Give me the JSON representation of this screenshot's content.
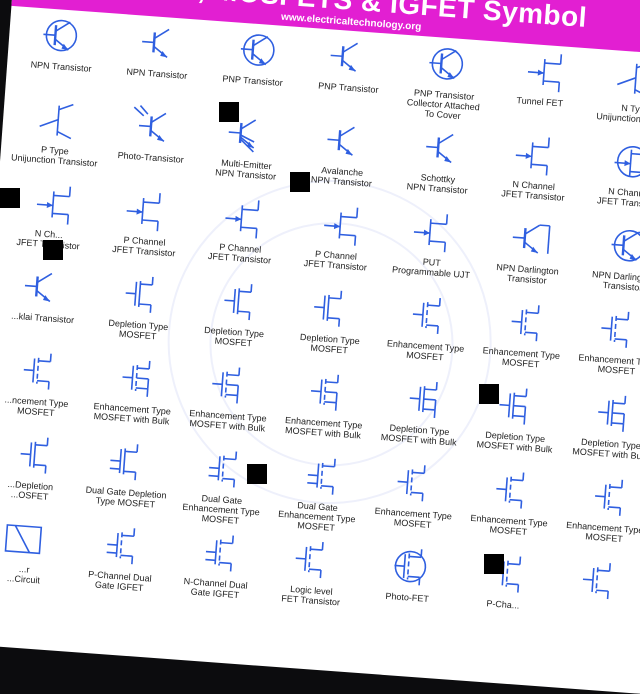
{
  "banner": {
    "title": "...tors, MOSFETS & IGFET Symbol",
    "url": "www.electricaltechnology.org"
  },
  "colors": {
    "banner": "#e21fd2",
    "symbol": "#2f5fe0",
    "label": "#222222",
    "background": "#0c0c0e"
  },
  "rows": [
    {
      "cells": [
        {
          "label": "NPN Transistor",
          "icon": "npn-transistor-circle-icon"
        },
        {
          "label": "NPN Transistor",
          "icon": "npn-transistor-icon"
        },
        {
          "label": "PNP Transistor",
          "icon": "pnp-transistor-circle-icon"
        },
        {
          "label": "PNP Transistor",
          "icon": "pnp-transistor-icon"
        },
        {
          "label": "PNP Transistor\nCollector Attached\nTo Cover",
          "icon": "pnp-collector-cover-icon"
        },
        {
          "label": "Tunnel FET",
          "icon": "tunnel-fet-icon"
        },
        {
          "label": "N Type\nUnijunction Trans...",
          "icon": "n-type-ujt-icon"
        }
      ]
    },
    {
      "cells": [
        {
          "label": "P Type\nUnijunction Transistor",
          "icon": "p-type-ujt-icon"
        },
        {
          "label": "Photo-Transistor",
          "icon": "photo-transistor-icon"
        },
        {
          "label": "Multi-Emitter\nNPN Transistor",
          "icon": "multi-emitter-npn-icon"
        },
        {
          "label": "Avalanche\nNPN Transistor",
          "icon": "avalanche-npn-icon"
        },
        {
          "label": "Schottky\nNPN Transistor",
          "icon": "schottky-npn-icon"
        },
        {
          "label": "N Channel\nJFET Transistor",
          "icon": "n-channel-jfet-icon"
        },
        {
          "label": "N Channel\nJFET Transistor",
          "icon": "n-channel-jfet-circle-icon"
        }
      ]
    },
    {
      "cells": [
        {
          "label": "N Ch...\nJFET Transistor",
          "icon": "n-channel-jfet-icon"
        },
        {
          "label": "P Channel\nJFET Transistor",
          "icon": "p-channel-jfet-icon"
        },
        {
          "label": "P Channel\nJFET Transistor",
          "icon": "p-channel-jfet-icon"
        },
        {
          "label": "P Channel\nJFET Transistor",
          "icon": "p-channel-jfet-arrow-icon"
        },
        {
          "label": "PUT\nProgrammable UJT",
          "icon": "put-icon"
        },
        {
          "label": "NPN Darlington\nTransistor",
          "icon": "npn-darlington-icon"
        },
        {
          "label": "NPN Darlington\nTransistor",
          "icon": "npn-darlington-full-icon"
        }
      ]
    },
    {
      "cells": [
        {
          "label": "...klai Transistor",
          "icon": "sziklai-transistor-icon"
        },
        {
          "label": "Depletion Type\nMOSFET",
          "icon": "depletion-mosfet-icon"
        },
        {
          "label": "Depletion Type\nMOSFET",
          "icon": "depletion-mosfet-icon"
        },
        {
          "label": "Depletion Type\nMOSFET",
          "icon": "depletion-mosfet-icon"
        },
        {
          "label": "Enhancement Type\nMOSFET",
          "icon": "enhancement-mosfet-icon"
        },
        {
          "label": "Enhancement Type\nMOSFET",
          "icon": "enhancement-mosfet-icon"
        },
        {
          "label": "Enhancement Type\nMOSFET",
          "icon": "enhancement-mosfet-icon"
        }
      ]
    },
    {
      "cells": [
        {
          "label": "...ncement Type\nMOSFET",
          "icon": "enhancement-mosfet-icon"
        },
        {
          "label": "Enhancement Type\nMOSFET with Bulk",
          "icon": "enhancement-mosfet-bulk-icon"
        },
        {
          "label": "Enhancement Type\nMOSFET with Bulk",
          "icon": "enhancement-mosfet-bulk-icon"
        },
        {
          "label": "Enhancement Type\nMOSFET with Bulk",
          "icon": "enhancement-mosfet-bulk-icon"
        },
        {
          "label": "Depletion Type\nMOSFET with Bulk",
          "icon": "depletion-mosfet-bulk-icon"
        },
        {
          "label": "Depletion Type\nMOSFET with Bulk",
          "icon": "depletion-mosfet-bulk-icon"
        },
        {
          "label": "Depletion Type\nMOSFET with Bulk",
          "icon": "depletion-mosfet-bulk-icon"
        }
      ]
    },
    {
      "cells": [
        {
          "label": "...Depletion\n...OSFET",
          "icon": "depletion-mosfet-icon"
        },
        {
          "label": "Dual Gate Depletion\nType MOSFET",
          "icon": "dual-gate-depletion-mosfet-icon"
        },
        {
          "label": "Dual Gate\nEnhancement Type\nMOSFET",
          "icon": "dual-gate-enhancement-mosfet-icon"
        },
        {
          "label": "Dual Gate\nEnhancement Type\nMOSFET",
          "icon": "dual-gate-enhancement-mosfet-icon"
        },
        {
          "label": "Enhancement Type\nMOSFET",
          "icon": "enhancement-mosfet-icon"
        },
        {
          "label": "Enhancement Type\nMOSFET",
          "icon": "enhancement-mosfet-icon"
        },
        {
          "label": "Enhancement Type\nMOSFET",
          "icon": "enhancement-mosfet-icon"
        }
      ]
    },
    {
      "cells": [
        {
          "label": "...r\n...Circuit",
          "icon": "circuit-icon"
        },
        {
          "label": "P-Channel Dual\nGate IGFET",
          "icon": "p-channel-dual-gate-igfet-icon"
        },
        {
          "label": "N-Channel Dual\nGate IGFET",
          "icon": "n-channel-dual-gate-igfet-icon"
        },
        {
          "label": "Logic level\nFET Transistor",
          "icon": "logic-level-fet-icon"
        },
        {
          "label": "Photo-FET",
          "icon": "photo-fet-icon"
        },
        {
          "label": "P-Cha...",
          "icon": "p-channel-fet-icon"
        },
        {
          "label": "",
          "icon": "mosfet-icon"
        }
      ]
    }
  ]
}
